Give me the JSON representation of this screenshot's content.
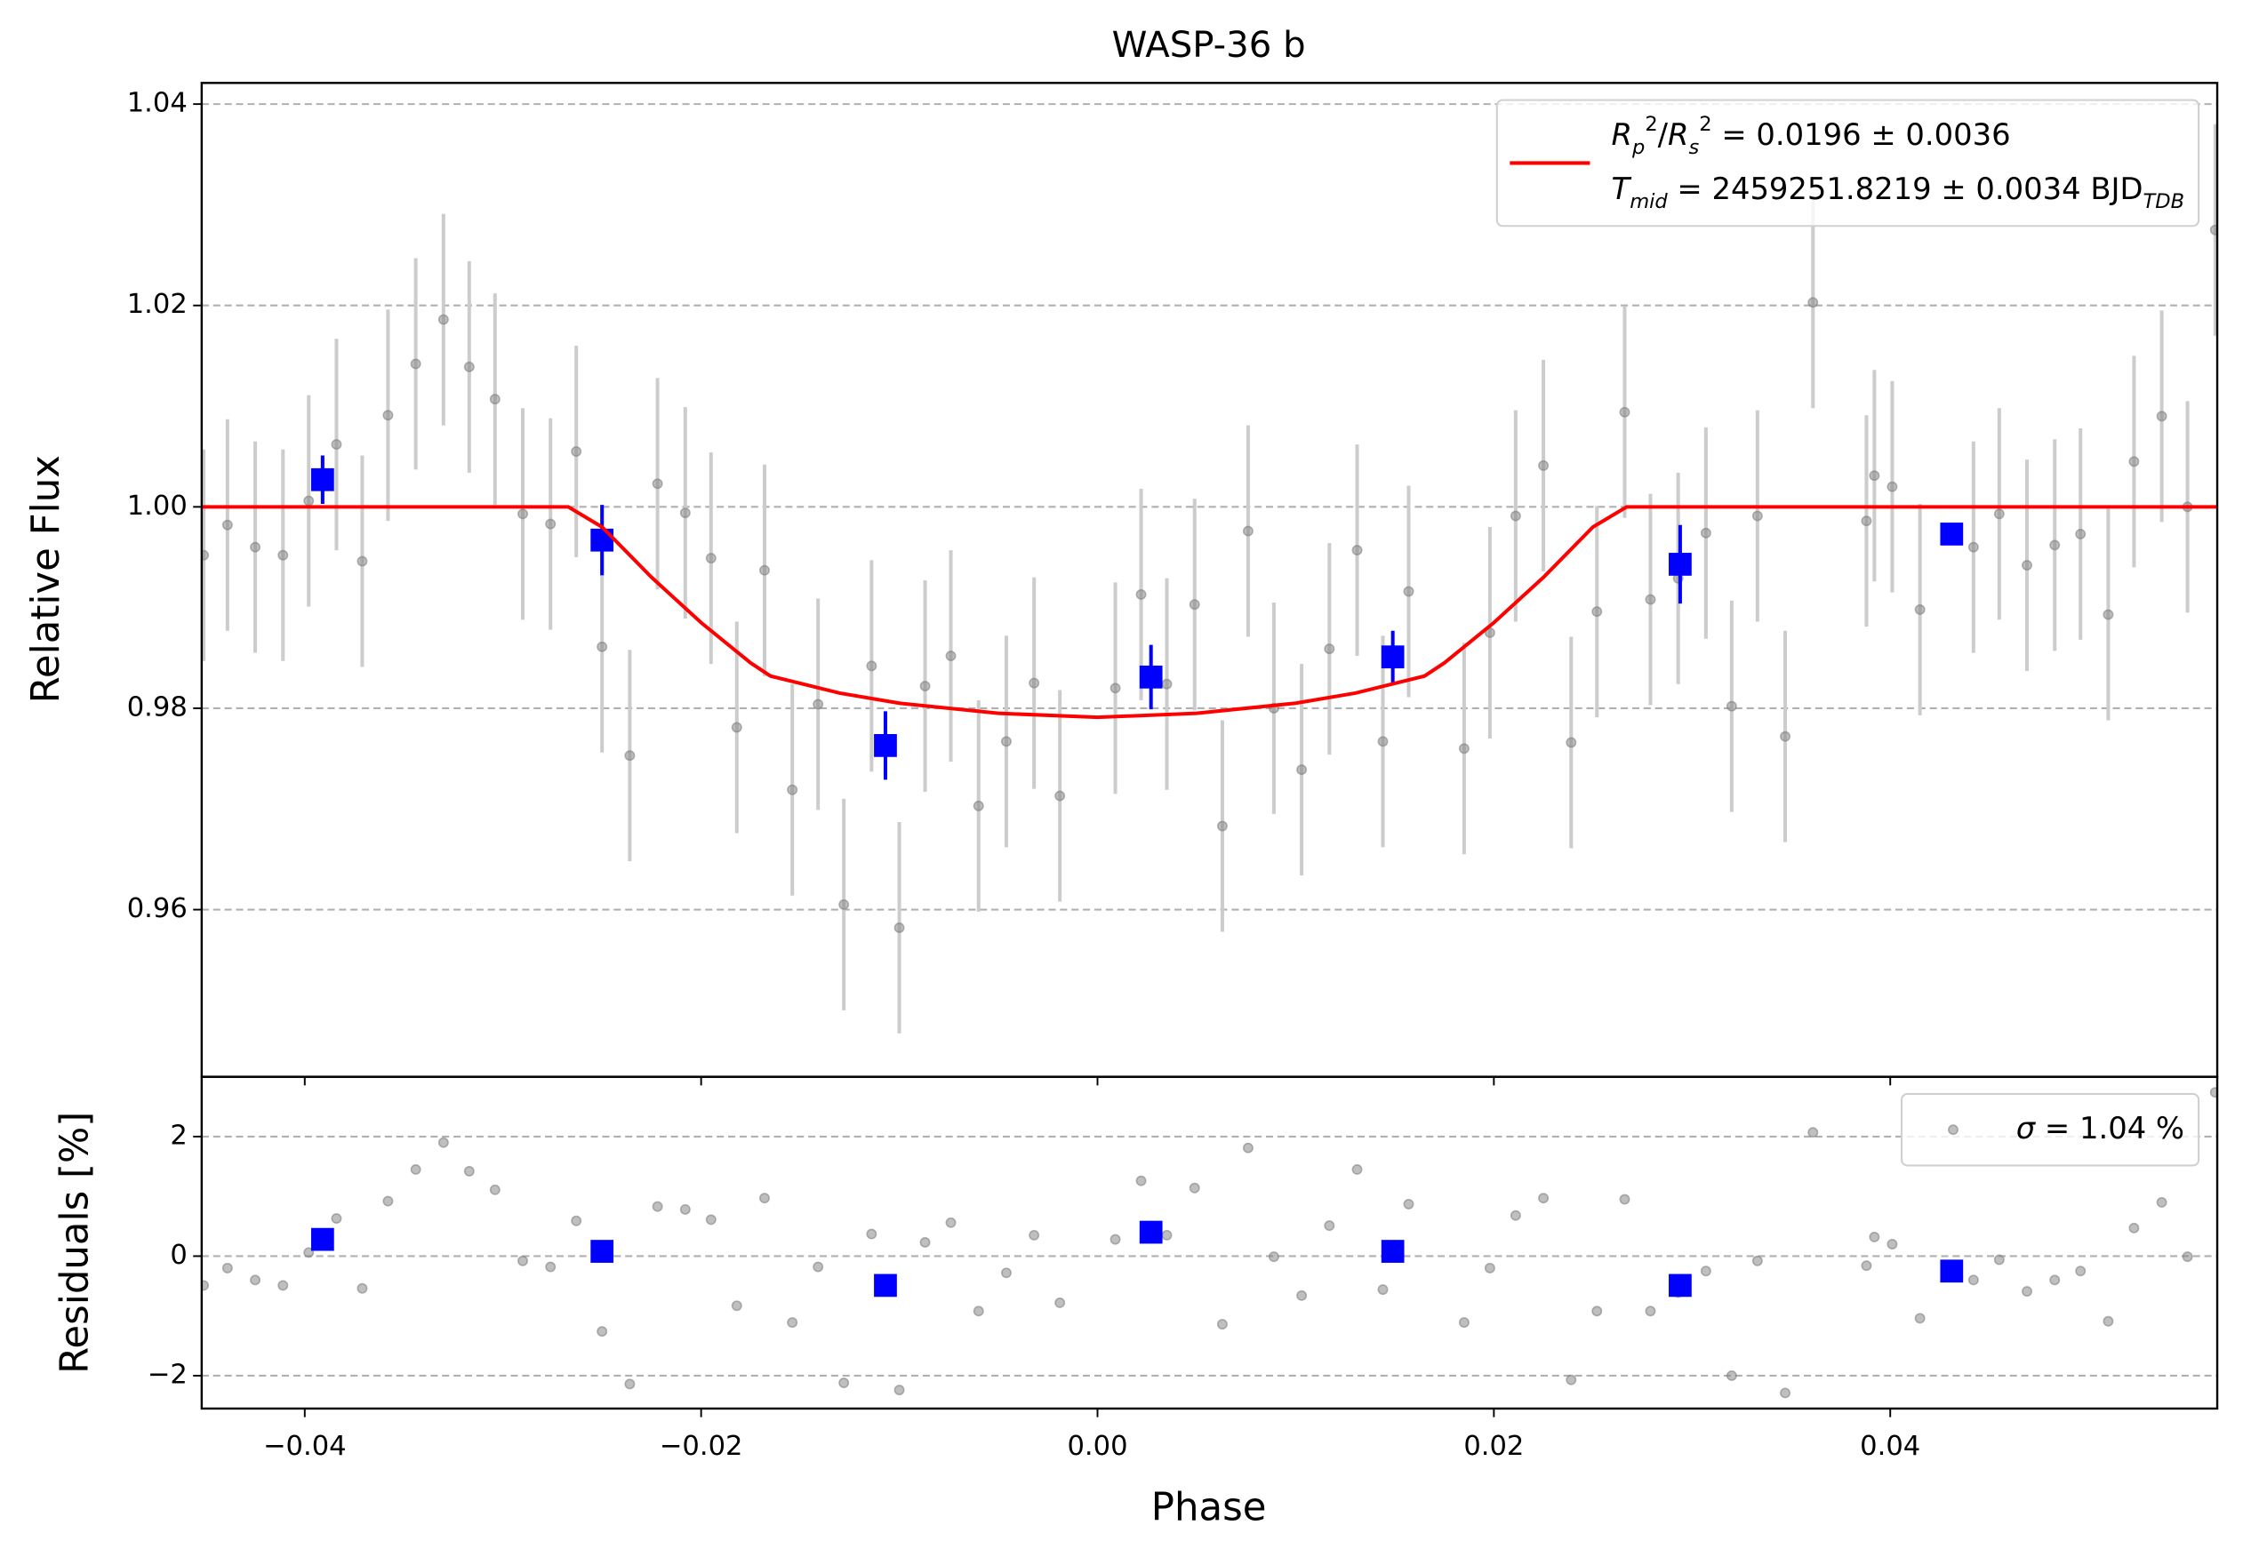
{
  "chart_data": [
    {
      "type": "errorbar",
      "title": "WASP-36 b",
      "ylabel": "Relative Flux",
      "xlim": [
        -0.0452,
        0.0565
      ],
      "ylim": [
        0.9434,
        1.0421
      ],
      "xticks": [
        {
          "value": -0.04,
          "label": "−0.04"
        },
        {
          "value": -0.02,
          "label": "−0.02"
        },
        {
          "value": 0,
          "label": "0.00"
        },
        0.02,
        0.04
      ],
      "yticks": [
        0.96,
        0.98,
        {
          "value": 1,
          "label": "1.00"
        },
        1.02,
        1.04
      ],
      "grid": true,
      "legend_loc": "upper right",
      "series": [
        {
          "kind": "points",
          "marker": "circle",
          "color": "#808080",
          "error_color": "#cccccc",
          "error": 0.0105,
          "x": [
            -0.0451,
            -0.0439,
            -0.0425,
            -0.0411,
            -0.0398,
            -0.0384,
            -0.0371,
            -0.0358,
            -0.0344,
            -0.033,
            -0.0317,
            -0.0304,
            -0.029,
            -0.0276,
            -0.0263,
            -0.025,
            -0.0236,
            -0.0222,
            -0.0208,
            -0.0195,
            -0.0182,
            -0.0168,
            -0.0154,
            -0.0141,
            -0.0128,
            -0.0114,
            -0.01,
            -0.0087,
            -0.0074,
            -0.006,
            -0.0046,
            -0.0032,
            -0.0019,
            0.0009,
            0.0022,
            0.0035,
            0.0049,
            0.0063,
            0.0076,
            0.0089,
            0.0103,
            0.0117,
            0.0131,
            0.0144,
            0.0157,
            0.0185,
            0.0198,
            0.0211,
            0.0225,
            0.0239,
            0.0252,
            0.0266,
            0.0279,
            0.0293,
            0.0307,
            0.032,
            0.0333,
            0.0347,
            0.0361,
            0.0388,
            0.0392,
            0.0401,
            0.0415,
            0.0442,
            0.0455,
            0.0469,
            0.0483,
            0.0496,
            0.051,
            0.0523,
            0.0537,
            0.055,
            0.0564
          ],
          "values": [
            0.9952,
            0.9982,
            0.996,
            0.9952,
            1.0006,
            1.0062,
            0.9946,
            1.0091,
            1.0142,
            1.0186,
            1.0139,
            1.0107,
            0.9993,
            0.9983,
            1.0055,
            0.9861,
            0.9753,
            1.0023,
            0.9994,
            0.9949,
            0.9781,
            0.9937,
            0.9719,
            0.9804,
            0.9605,
            0.9842,
            0.9582,
            0.9822,
            0.9852,
            0.9703,
            0.9767,
            0.9825,
            0.9713,
            0.982,
            0.9913,
            0.9824,
            0.9903,
            0.9683,
            0.9976,
            0.98,
            0.9739,
            0.9859,
            0.9957,
            0.9767,
            0.9916,
            0.976,
            0.9875,
            0.9991,
            1.0041,
            0.9766,
            0.9896,
            1.0094,
            0.9908,
            0.9929,
            0.9974,
            0.9802,
            0.9991,
            0.9772,
            1.0203,
            0.9986,
            1.0031,
            1.002,
            0.9898,
            0.996,
            0.9993,
            0.9942,
            0.9962,
            0.9973,
            0.9893,
            1.0045,
            1.009,
            1.0,
            1.0275
          ]
        },
        {
          "kind": "points",
          "marker": "square",
          "color": "#0000ff",
          "x": [
            -0.0391,
            -0.025,
            -0.0107,
            0.0027,
            0.0149,
            0.0294,
            0.0431
          ],
          "values": [
            1.0027,
            0.9967,
            0.9763,
            0.9831,
            0.9851,
            0.9943,
            0.9973
          ],
          "errors": [
            0.0024,
            0.0035,
            0.0034,
            0.0032,
            0.0026,
            0.0039,
            0.0005
          ]
        },
        {
          "kind": "line",
          "color": "#ff0000",
          "x": [
            -0.0452,
            -0.0267,
            -0.025,
            -0.0225,
            -0.02,
            -0.0175,
            -0.0165,
            -0.013,
            -0.01,
            -0.005,
            0,
            0.005,
            0.01,
            0.013,
            0.0165,
            0.0175,
            0.02,
            0.0225,
            0.025,
            0.0267,
            0.0565
          ],
          "values": [
            1,
            1,
            0.998,
            0.993,
            0.9885,
            0.9845,
            0.9832,
            0.9815,
            0.9805,
            0.9795,
            0.9791,
            0.9795,
            0.9805,
            0.9815,
            0.9832,
            0.9845,
            0.9885,
            0.993,
            0.998,
            1,
            1
          ],
          "legend": [
            [
              {
                "text": "R",
                "style": "italic"
              },
              {
                "text": "p",
                "style": "sub"
              },
              {
                "text": "2",
                "style": "sup"
              },
              {
                "text": "/",
                "style": "normal"
              },
              {
                "text": "R",
                "style": "italic"
              },
              {
                "text": "s",
                "style": "sub"
              },
              {
                "text": "2",
                "style": "sup"
              },
              {
                "text": " = 0.0196 ± 0.0036",
                "style": "normal"
              }
            ],
            [
              {
                "text": "T",
                "style": "italic"
              },
              {
                "text": "mid",
                "style": "sub"
              },
              {
                "text": " = 2459251.8219 ± 0.0034 BJD",
                "style": "normal"
              },
              {
                "text": "TDB",
                "style": "sub"
              }
            ]
          ]
        }
      ]
    },
    {
      "type": "errorbar",
      "ylabel": "Residuals [%]",
      "xlabel": "Phase",
      "xlim": [
        -0.0452,
        0.0565
      ],
      "ylim": [
        -2.55,
        3.0
      ],
      "xticks": [
        {
          "value": -0.04,
          "label": "−0.04"
        },
        {
          "value": -0.02,
          "label": "−0.02"
        },
        {
          "value": 0,
          "label": "0.00"
        },
        0.02,
        0.04
      ],
      "yticks": [
        {
          "value": -2,
          "label": "−2"
        },
        0,
        2
      ],
      "grid": true,
      "legend_loc": "upper right",
      "series": [
        {
          "kind": "points",
          "marker": "circle",
          "color": "#808080",
          "x": [
            -0.0451,
            -0.0439,
            -0.0425,
            -0.0411,
            -0.0398,
            -0.0384,
            -0.0371,
            -0.0358,
            -0.0344,
            -0.033,
            -0.0317,
            -0.0304,
            -0.029,
            -0.0276,
            -0.0263,
            -0.025,
            -0.0236,
            -0.0222,
            -0.0208,
            -0.0195,
            -0.0182,
            -0.0168,
            -0.0154,
            -0.0141,
            -0.0128,
            -0.0114,
            -0.01,
            -0.0087,
            -0.0074,
            -0.006,
            -0.0046,
            -0.0032,
            -0.0019,
            0.0009,
            0.0022,
            0.0035,
            0.0049,
            0.0063,
            0.0076,
            0.0089,
            0.0103,
            0.0117,
            0.0131,
            0.0144,
            0.0157,
            0.0185,
            0.0198,
            0.0211,
            0.0225,
            0.0239,
            0.0252,
            0.0266,
            0.0279,
            0.0293,
            0.0307,
            0.032,
            0.0333,
            0.0347,
            0.0361,
            0.0388,
            0.0392,
            0.0401,
            0.0415,
            0.0442,
            0.0455,
            0.0469,
            0.0483,
            0.0496,
            0.051,
            0.0523,
            0.0537,
            0.055,
            0.0564
          ],
          "values": [
            -0.49,
            -0.2,
            -0.4,
            -0.49,
            0.06,
            0.63,
            -0.54,
            0.92,
            1.45,
            1.9,
            1.42,
            1.11,
            -0.08,
            -0.18,
            0.59,
            -1.26,
            -2.14,
            0.83,
            0.78,
            0.61,
            -0.83,
            0.97,
            -1.11,
            -0.18,
            -2.12,
            0.37,
            -2.24,
            0.23,
            0.56,
            -0.92,
            -0.28,
            0.35,
            -0.78,
            0.28,
            1.26,
            0.35,
            1.14,
            -1.14,
            1.81,
            -0.01,
            -0.66,
            0.51,
            1.45,
            -0.56,
            0.87,
            -1.11,
            -0.2,
            0.68,
            0.97,
            -2.07,
            -0.92,
            0.95,
            -0.92,
            -0.61,
            -0.25,
            -2.0,
            -0.08,
            -2.29,
            2.07,
            -0.16,
            0.32,
            0.2,
            -1.04,
            -0.4,
            -0.06,
            -0.59,
            -0.4,
            -0.25,
            -1.09,
            0.47,
            0.9,
            -0.01,
            2.74
          ],
          "legend": [
            [
              {
                "text": "σ",
                "style": "italic"
              },
              {
                "text": " = 1.04 %",
                "style": "normal"
              }
            ]
          ]
        },
        {
          "kind": "points",
          "marker": "square",
          "color": "#0000ff",
          "x": [
            -0.0391,
            -0.025,
            -0.0107,
            0.0027,
            0.0149,
            0.0294,
            0.0431
          ],
          "values": [
            0.28,
            0.08,
            -0.49,
            0.4,
            0.08,
            -0.49,
            -0.25
          ]
        }
      ]
    }
  ]
}
